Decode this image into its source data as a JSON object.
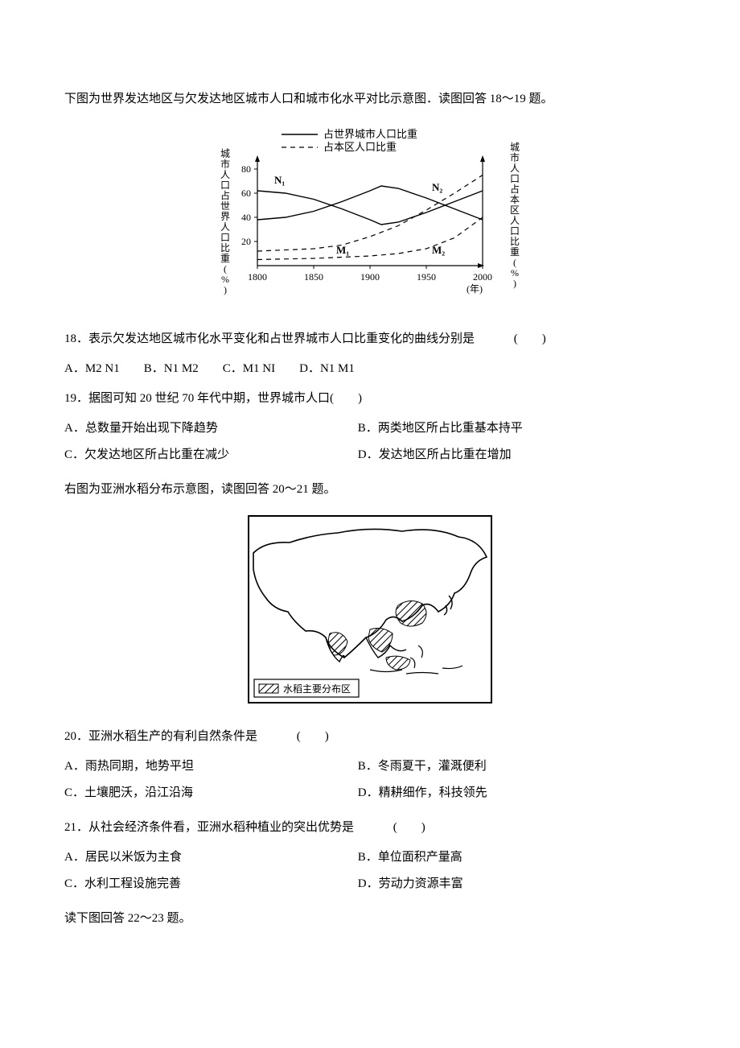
{
  "intro1": "下图为世界发达地区与欠发达地区城市人口和城市化水平对比示意图．读图回答 18～19 题。",
  "chart": {
    "type": "line",
    "legend_solid": "占世界城市人口比重",
    "legend_dashed": "占本区人口比重",
    "y_axis_left": "城市人口占世界人口比重(%)",
    "y_axis_right": "城市人口占本区人口比重(%)",
    "x_axis_label": "(年)",
    "x_ticks": [
      "1800",
      "1850",
      "1900",
      "1950",
      "2000"
    ],
    "y_ticks": [
      "20",
      "40",
      "60",
      "80"
    ],
    "curve_labels": {
      "N1": "N₁",
      "N2": "N₂",
      "M1": "M₁",
      "M2": "M₂"
    },
    "series_N1_solid": [
      [
        1800,
        62
      ],
      [
        1825,
        60
      ],
      [
        1850,
        55
      ],
      [
        1875,
        47
      ],
      [
        1900,
        38
      ],
      [
        1910,
        34
      ],
      [
        1925,
        36
      ],
      [
        1950,
        44
      ],
      [
        1975,
        53
      ],
      [
        2000,
        62
      ]
    ],
    "series_N2_solid": [
      [
        1800,
        38
      ],
      [
        1825,
        40
      ],
      [
        1850,
        45
      ],
      [
        1875,
        53
      ],
      [
        1900,
        62
      ],
      [
        1910,
        66
      ],
      [
        1925,
        64
      ],
      [
        1950,
        56
      ],
      [
        1975,
        47
      ],
      [
        2000,
        38
      ]
    ],
    "series_M1_dashed": [
      [
        1800,
        12
      ],
      [
        1850,
        14
      ],
      [
        1875,
        17
      ],
      [
        1900,
        24
      ],
      [
        1925,
        33
      ],
      [
        1950,
        46
      ],
      [
        1975,
        60
      ],
      [
        2000,
        75
      ]
    ],
    "series_M2_dashed": [
      [
        1800,
        5
      ],
      [
        1850,
        6
      ],
      [
        1875,
        7
      ],
      [
        1900,
        8
      ],
      [
        1925,
        10
      ],
      [
        1950,
        14
      ],
      [
        1975,
        23
      ],
      [
        2000,
        40
      ]
    ],
    "colors": {
      "axis": "#000",
      "line": "#000",
      "text": "#000",
      "bg": "#fff"
    },
    "line_width_solid": 1.4,
    "line_width_dashed": 1.2,
    "dash_pattern": "6 5"
  },
  "q18": {
    "text": "18．表示欠发达地区城市化水平变化和占世界城市人口比重变化的曲线分别是",
    "blank": "(　　)",
    "options": {
      "A": "A．M2 N1",
      "B": "B．N1 M2",
      "C": "C．M1 NI",
      "D": "D．N1 M1"
    }
  },
  "q19": {
    "text": "19．据图可知 20 世纪 70 年代中期，世界城市人口(　　)",
    "options": {
      "A": "A．总数量开始出现下降趋势",
      "B": "B．两类地区所占比重基本持平",
      "C": "C．欠发达地区所占比重在减少",
      "D": "D．发达地区所占比重在增加"
    }
  },
  "intro2": "右图为亚洲水稻分布示意图，读图回答 20～21 题。",
  "map": {
    "legend_label": "水稻主要分布区",
    "hatch_color": "#000",
    "outline_color": "#000",
    "bg": "#fff"
  },
  "q20": {
    "text": "20．亚洲水稻生产的有利自然条件是",
    "blank": "(　　)",
    "options": {
      "A": "A．雨热同期，地势平坦",
      "B": "B．冬雨夏干，灌溉便利",
      "C": "C．土壤肥沃，沿江沿海",
      "D": "D．精耕细作，科技领先"
    }
  },
  "q21": {
    "text": "21．从社会经济条件看，亚洲水稻种植业的突出优势是",
    "blank": "(　　)",
    "options": {
      "A": "A．居民以米饭为主食",
      "B": "B．单位面积产量高",
      "C": "C．水利工程设施完善",
      "D": "D．劳动力资源丰富"
    }
  },
  "intro3": "读下图回答 22～23 题。"
}
